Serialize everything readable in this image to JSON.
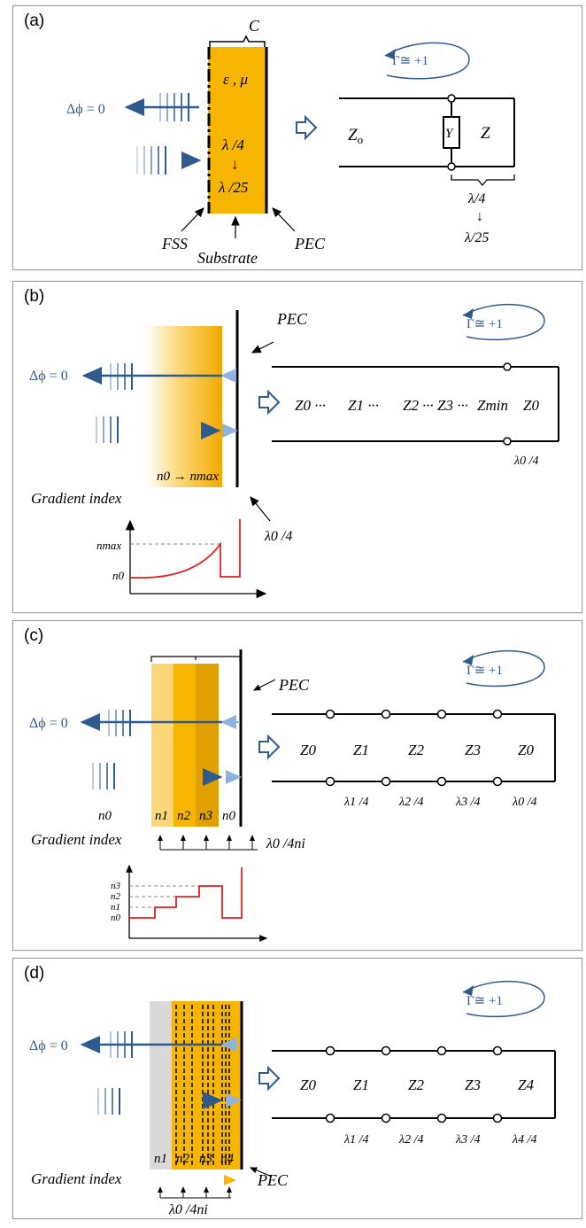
{
  "panels": {
    "a": {
      "label": "(a)",
      "top_label": "C",
      "material": "ε , μ",
      "fraction_top": "λ /4",
      "arrow": "↓",
      "fraction_bottom": "λ /25",
      "phase": "Δϕ = 0",
      "fss": "FSS",
      "substrate": "Substrate",
      "pec": "PEC",
      "gamma": "Γ≅ +1",
      "z0": "Z",
      "z0_sub": "o",
      "y": "Y",
      "z": "Z",
      "line_frac_top": "λ/4",
      "line_arrow": "↓",
      "line_frac_bottom": "λ/25"
    },
    "b": {
      "label": "(b)",
      "pec": "PEC",
      "phase": "Δϕ = 0",
      "gamma": "Γ≅ +1",
      "n_range": "n0 → nmax",
      "gradient": "Gradient index",
      "quarter": "λ0 /4",
      "graph_nmax": "nmax",
      "graph_n0": "n0",
      "line_z": [
        "Z0 ···",
        "Z1 ···",
        "Z2",
        "··· Z3 ···",
        "Zmin",
        "Z0"
      ],
      "line_quarter": "λ0 /4"
    },
    "c": {
      "label": "(c)",
      "pec": "PEC",
      "phase": "Δϕ = 0",
      "gamma": "Γ≅ +1",
      "n_labels": [
        "n0",
        "n1",
        "n2",
        "n3",
        "n0"
      ],
      "gradient": "Gradient index",
      "quarter": "λ0 /4ni",
      "graph_levels": [
        "n3",
        "n2",
        "n1",
        "n0"
      ],
      "line_z": [
        "Z0",
        "Z1",
        "Z2",
        "Z3",
        "Z0"
      ],
      "line_quarters": [
        "λ1 /4",
        "λ2 /4",
        "λ3 /4",
        "λ0 /4"
      ]
    },
    "d": {
      "label": "(d)",
      "phase": "Δϕ = 0",
      "gamma": "Γ≅ +1",
      "n_labels": [
        "n1",
        "n2",
        "n3",
        "n4"
      ],
      "gradient": "Gradient index",
      "pec": "PEC",
      "quarter": "λ0 /4ni",
      "line_z": [
        "Z0",
        "Z1",
        "Z2",
        "Z3",
        "Z4"
      ],
      "line_quarters": [
        "λ1 /4",
        "λ2 /4",
        "λ3 /4",
        "λ4 /4"
      ]
    }
  },
  "colors": {
    "substrate": "#f7b500",
    "wave": "#2e5a8c",
    "wave_light": "#8fb3dd",
    "pec": "#000000",
    "graph": "#e02020",
    "frame": "#9a9a9a"
  }
}
